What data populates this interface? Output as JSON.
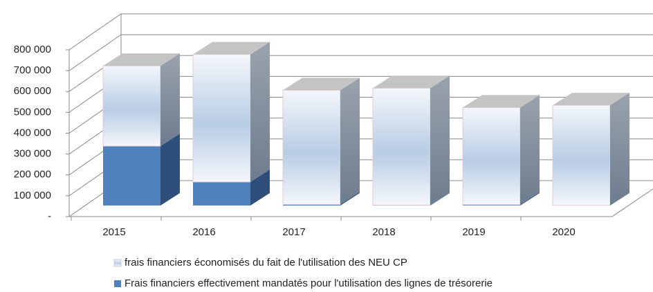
{
  "chart_data": {
    "type": "bar3d_stacked",
    "categories": [
      "2015",
      "2016",
      "2017",
      "2018",
      "2019",
      "2020"
    ],
    "series": [
      {
        "name": "frais financiers économisés du fait de l'utilisation des NEU CP",
        "color": "#b8cce4",
        "values": [
          385000,
          612000,
          548000,
          561000,
          466000,
          480000
        ]
      },
      {
        "name": "Frais financiers effectivement mandatés pour l'utilisation des lignes de trésorerie",
        "color": "#4f81bd",
        "values": [
          285000,
          113000,
          5000,
          2000,
          4000,
          1000
        ]
      }
    ],
    "ylim": [
      0,
      800000
    ],
    "yticks": [
      {
        "value": 0,
        "label": "-"
      },
      {
        "value": 100000,
        "label": "100 000"
      },
      {
        "value": 200000,
        "label": "200 000"
      },
      {
        "value": 300000,
        "label": "300 000"
      },
      {
        "value": 400000,
        "label": "400 000"
      },
      {
        "value": 500000,
        "label": "500 000"
      },
      {
        "value": 600000,
        "label": "600 000"
      },
      {
        "value": 700000,
        "label": "700 000"
      },
      {
        "value": 800000,
        "label": "800 000"
      }
    ],
    "grid": true,
    "legend": "bottom"
  }
}
